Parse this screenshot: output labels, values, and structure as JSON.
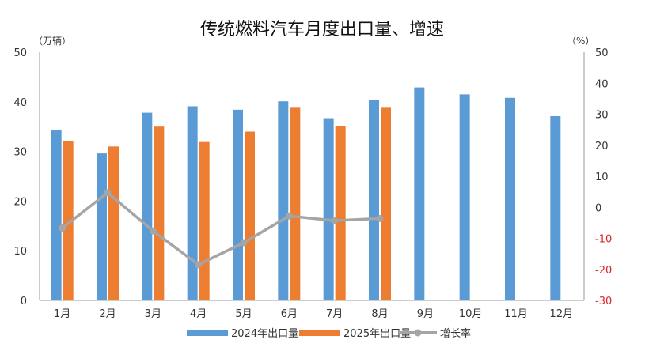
{
  "chart_data": {
    "type": "bar",
    "title": "传统燃料汽车月度出口量、增速",
    "left_unit": "（万辆）",
    "right_unit": "（%）",
    "categories": [
      "1月",
      "2月",
      "3月",
      "4月",
      "5月",
      "6月",
      "7月",
      "8月",
      "9月",
      "10月",
      "11月",
      "12月"
    ],
    "series": [
      {
        "name": "2024年出口量",
        "kind": "bar",
        "axis": "left",
        "color": "#5b9bd5",
        "values": [
          34.4,
          29.6,
          37.8,
          39.1,
          38.4,
          40.1,
          36.7,
          40.3,
          42.9,
          41.5,
          40.8,
          37.1
        ]
      },
      {
        "name": "2025年出口量",
        "kind": "bar",
        "axis": "left",
        "color": "#ed7d31",
        "values": [
          32.1,
          31.0,
          35.0,
          31.9,
          34.0,
          38.8,
          35.1,
          38.8,
          null,
          null,
          null,
          null
        ]
      },
      {
        "name": "增长率",
        "kind": "line",
        "axis": "right",
        "color": "#a5a5a5",
        "values": [
          -6.7,
          4.7,
          -7.6,
          -18.5,
          -11.4,
          -2.8,
          -4.3,
          -3.6,
          null,
          null,
          null,
          null
        ]
      }
    ],
    "y_left": {
      "min": 0,
      "max": 50,
      "ticks": [
        0,
        10,
        20,
        30,
        40,
        50
      ]
    },
    "y_right": {
      "min": -30,
      "max": 50,
      "ticks": [
        -30,
        -20,
        -10,
        0,
        10,
        20,
        30,
        40,
        50
      ]
    },
    "negative_tick_color": "#d9262a",
    "grid": false,
    "legend_position": "bottom"
  }
}
